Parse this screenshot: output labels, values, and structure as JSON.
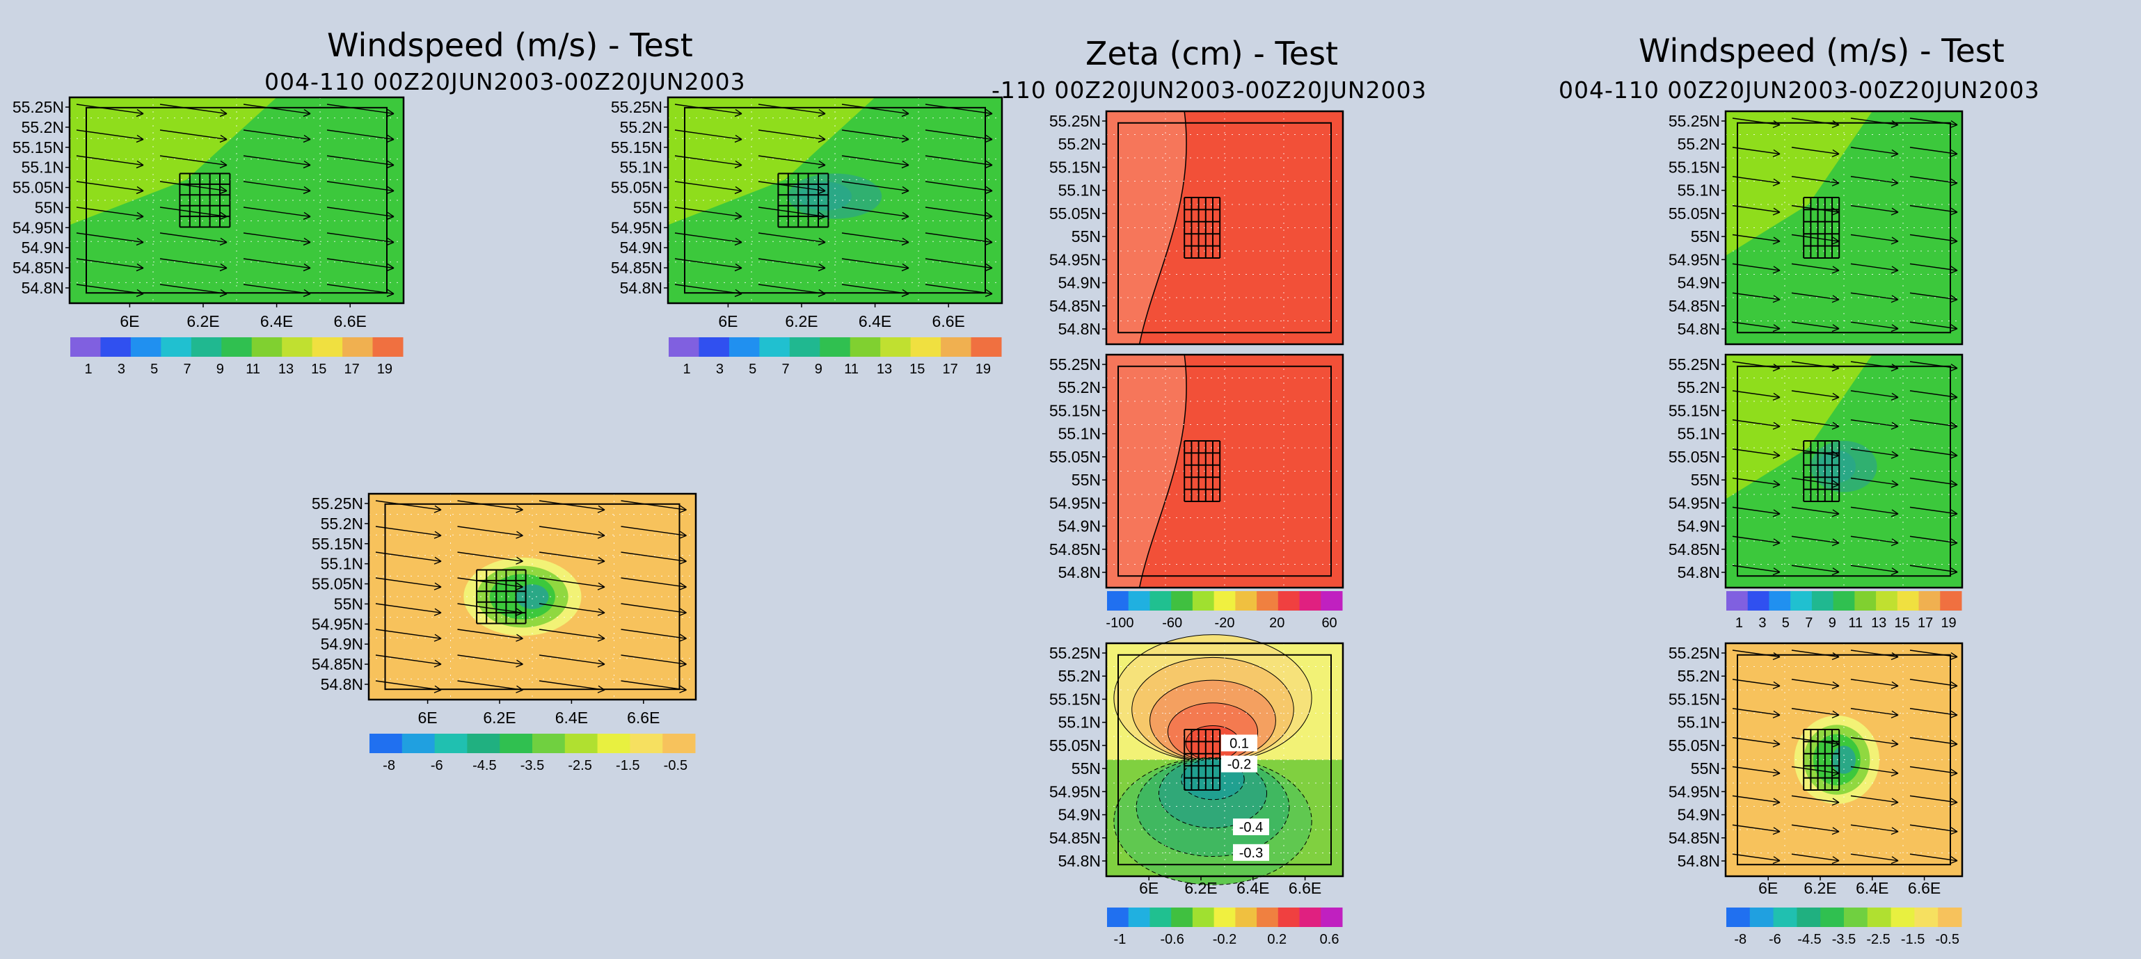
{
  "figure": {
    "col1_title": "Windspeed (m/s) - Test",
    "col1_subtitle": "004-110  00Z20JUN2003-00Z20JUN2003",
    "col2_title": "Zeta (cm) - Test",
    "col2_subtitle": "-110  00Z20JUN2003-00Z20JUN2003",
    "col3_title": "Windspeed (m/s) - Test",
    "col3_subtitle": "004-110  00Z20JUN2003-00Z20JUN2003"
  },
  "colors": {
    "background": "#ccd5e3",
    "light_green": "#8fdd1c",
    "green": "#3cc83c",
    "teal": "#2aa886",
    "orange": "#f7c25c",
    "red": "#f25038",
    "salmon": "#f6765a",
    "yellow": "#f2f276"
  },
  "chart_data": [
    {
      "panel": "windspeed-left-top",
      "type": "heatmap",
      "lat_ticks": [
        "55.25N",
        "55.2N",
        "55.15N",
        "55.1N",
        "55.05N",
        "55N",
        "54.95N",
        "54.9N",
        "54.85N",
        "54.8N"
      ],
      "lon_ticks": [
        "6E",
        "6.2E",
        "6.4E",
        "6.6E"
      ],
      "colorbar_ticks": [
        "1",
        "3",
        "5",
        "7",
        "9",
        "11",
        "13",
        "15",
        "17",
        "19"
      ]
    },
    {
      "panel": "windspeed-left-top-2",
      "type": "heatmap",
      "lat_ticks": [
        "55.25N",
        "55.2N",
        "55.15N",
        "55.1N",
        "55.05N",
        "55N",
        "54.95N",
        "54.9N",
        "54.85N",
        "54.8N"
      ],
      "lon_ticks": [
        "6E",
        "6.2E",
        "6.4E",
        "6.6E"
      ],
      "colorbar_ticks": [
        "1",
        "3",
        "5",
        "7",
        "9",
        "11",
        "13",
        "15",
        "17",
        "19"
      ]
    },
    {
      "panel": "windspeed-left-diff",
      "type": "heatmap",
      "lat_ticks": [
        "55.25N",
        "55.2N",
        "55.15N",
        "55.1N",
        "55.05N",
        "55N",
        "54.95N",
        "54.9N",
        "54.85N",
        "54.8N"
      ],
      "lon_ticks": [
        "6E",
        "6.2E",
        "6.4E",
        "6.6E"
      ],
      "colorbar_ticks": [
        "-8",
        "-6",
        "-4.5",
        "-3.5",
        "-2.5",
        "-1.5",
        "-0.5"
      ]
    },
    {
      "panel": "zeta-top",
      "type": "heatmap",
      "lat_ticks": [
        "55.25N",
        "55.2N",
        "55.15N",
        "55.1N",
        "55.05N",
        "55N",
        "54.95N",
        "54.9N",
        "54.85N",
        "54.8N"
      ]
    },
    {
      "panel": "zeta-middle",
      "type": "heatmap",
      "lat_ticks": [
        "55.25N",
        "55.2N",
        "55.15N",
        "55.1N",
        "55.05N",
        "55N",
        "54.95N",
        "54.9N",
        "54.85N",
        "54.8N"
      ],
      "colorbar_ticks": [
        "-100",
        "-60",
        "-20",
        "20",
        "60"
      ]
    },
    {
      "panel": "zeta-diff",
      "type": "heatmap",
      "lat_ticks": [
        "55.25N",
        "55.2N",
        "55.15N",
        "55.1N",
        "55.05N",
        "55N",
        "54.95N",
        "54.9N",
        "54.85N",
        "54.8N"
      ],
      "lon_ticks": [
        "6E",
        "6.2E",
        "6.4E",
        "6.6E"
      ],
      "contour_labels": [
        "0.1",
        "-0.2",
        "-0.4",
        "-0.3"
      ],
      "colorbar_ticks": [
        "-1",
        "-0.6",
        "-0.2",
        "0.2",
        "0.6"
      ]
    },
    {
      "panel": "windspeed-right-top",
      "type": "heatmap",
      "lat_ticks": [
        "55.25N",
        "55.2N",
        "55.15N",
        "55.1N",
        "55.05N",
        "55N",
        "54.95N",
        "54.9N",
        "54.85N",
        "54.8N"
      ]
    },
    {
      "panel": "windspeed-right-middle",
      "type": "heatmap",
      "lat_ticks": [
        "55.25N",
        "55.2N",
        "55.15N",
        "55.1N",
        "55.05N",
        "55N",
        "54.95N",
        "54.9N",
        "54.85N",
        "54.8N"
      ],
      "colorbar_ticks": [
        "1",
        "3",
        "5",
        "7",
        "9",
        "11",
        "13",
        "15",
        "17",
        "19"
      ]
    },
    {
      "panel": "windspeed-right-diff",
      "type": "heatmap",
      "lat_ticks": [
        "55.25N",
        "55.2N",
        "55.15N",
        "55.1N",
        "55.05N",
        "55N",
        "54.95N",
        "54.9N",
        "54.85N",
        "54.8N"
      ],
      "lon_ticks": [
        "6E",
        "6.2E",
        "6.4E",
        "6.6E"
      ],
      "colorbar_ticks": [
        "-8",
        "-6",
        "-4.5",
        "-3.5",
        "-2.5",
        "-1.5",
        "-0.5"
      ]
    }
  ]
}
